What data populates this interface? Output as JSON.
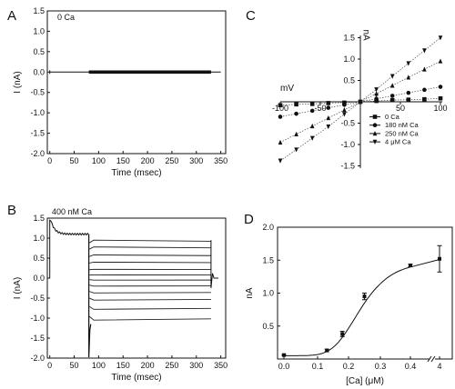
{
  "panels": {
    "A": {
      "letter": "A",
      "annotation": "0 Ca"
    },
    "B": {
      "letter": "B",
      "annotation": "400 nM Ca"
    },
    "C": {
      "letter": "C"
    },
    "D": {
      "letter": "D"
    }
  },
  "chart_data": [
    {
      "panel": "A",
      "type": "line",
      "title": "",
      "annotation": "0 Ca",
      "xlabel": "Time (msec)",
      "ylabel": "I (nA)",
      "xlim": [
        -5,
        360
      ],
      "ylim": [
        -2.0,
        1.5
      ],
      "xticks": [
        0,
        50,
        100,
        150,
        200,
        250,
        300,
        350
      ],
      "yticks": [
        -2.0,
        -1.5,
        -1.0,
        -0.5,
        0.0,
        0.5,
        1.0,
        1.5
      ],
      "description_series": [
        {
          "x": [
            0,
            80,
            80,
            330,
            330,
            350
          ],
          "y": [
            0,
            0,
            0,
            0,
            0,
            0
          ]
        }
      ]
    },
    {
      "panel": "B",
      "type": "line",
      "title": "",
      "annotation": "400 nM Ca",
      "xlabel": "Time (msec)",
      "ylabel": "I (nA)",
      "xlim": [
        -5,
        360
      ],
      "ylim": [
        -2.0,
        1.5
      ],
      "xticks": [
        0,
        50,
        100,
        150,
        200,
        250,
        300,
        350
      ],
      "yticks": [
        -2.0,
        -1.5,
        -1.0,
        -0.5,
        0.0,
        0.5,
        1.0,
        1.5
      ],
      "prepulse_level": 1.45,
      "prepulse_steady": 1.1,
      "step_levels": [
        0.95,
        0.78,
        0.58,
        0.4,
        0.22,
        0.08,
        -0.05,
        -0.2,
        -0.37,
        -0.55,
        -0.78,
        -1.05
      ]
    },
    {
      "panel": "C",
      "type": "scatter",
      "title": "",
      "xlabel": "mV",
      "ylabel": "nA",
      "xlim": [
        -100,
        100
      ],
      "ylim": [
        -1.5,
        1.5
      ],
      "xticks": [
        -100,
        -50,
        50,
        100
      ],
      "yticks": [
        -1.5,
        -1.0,
        -0.5,
        0.5,
        1.0,
        1.5
      ],
      "x": [
        -100,
        -80,
        -60,
        -40,
        -20,
        0,
        20,
        40,
        60,
        80,
        100
      ],
      "series": [
        {
          "name": "0 Ca",
          "marker": "square",
          "values": [
            -0.08,
            -0.06,
            -0.05,
            -0.03,
            -0.02,
            0.0,
            0.02,
            0.04,
            0.05,
            0.06,
            0.08
          ]
        },
        {
          "name": "180 nM Ca",
          "marker": "circle",
          "values": [
            -0.35,
            -0.28,
            -0.21,
            -0.14,
            -0.07,
            0.0,
            0.07,
            0.14,
            0.21,
            0.28,
            0.35
          ]
        },
        {
          "name": "250 nM Ca",
          "marker": "triangle-up",
          "values": [
            -0.95,
            -0.76,
            -0.57,
            -0.38,
            -0.19,
            0.0,
            0.19,
            0.38,
            0.57,
            0.76,
            0.95
          ]
        },
        {
          "name": "4 μM Ca",
          "marker": "triangle-down",
          "values": [
            -1.38,
            -1.12,
            -0.85,
            -0.58,
            -0.29,
            0.0,
            0.29,
            0.6,
            0.9,
            1.2,
            1.5
          ]
        }
      ],
      "error_bar": {
        "x": 20,
        "y": 0.1,
        "err": 0.08
      },
      "legend_position": "lower-right"
    },
    {
      "panel": "D",
      "type": "scatter",
      "title": "",
      "xlabel": "[Ca] (μM)",
      "ylabel": "nA",
      "xlim": [
        0,
        4.2
      ],
      "ylim": [
        0,
        2.0
      ],
      "xticks": [
        "0.0",
        "0.1",
        "0.2",
        "0.3",
        "0.4",
        "4"
      ],
      "xtick_values": [
        0,
        0.1,
        0.2,
        0.3,
        0.4,
        4
      ],
      "axis_break": "between 0.4 and 4",
      "yticks": [
        0.5,
        1.0,
        1.5,
        2.0
      ],
      "x": [
        0.0,
        0.13,
        0.18,
        0.25,
        0.4,
        4
      ],
      "y": [
        0.06,
        0.13,
        0.38,
        0.95,
        1.42,
        1.52
      ],
      "errors": [
        0.01,
        0.02,
        0.04,
        0.05,
        0.02,
        0.2
      ],
      "fit": "sigmoidal"
    }
  ]
}
